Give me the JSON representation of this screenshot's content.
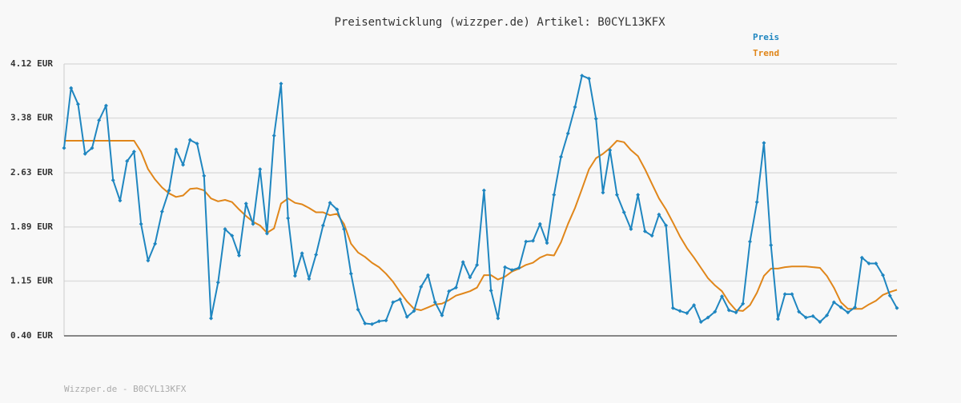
{
  "chart_data": {
    "type": "line",
    "title": "Preisentwicklung (wizzper.de) Artikel: B0CYL13KFX",
    "footer": "Wizzper.de - B0CYL13KFX",
    "ylim": [
      0.4,
      4.12
    ],
    "yticks": [
      {
        "value": 0.4,
        "label": "0.40 EUR"
      },
      {
        "value": 1.15,
        "label": "1.15 EUR"
      },
      {
        "value": 1.89,
        "label": "1.89 EUR"
      },
      {
        "value": 2.63,
        "label": "2.63 EUR"
      },
      {
        "value": 3.38,
        "label": "3.38 EUR"
      },
      {
        "value": 4.12,
        "label": "4.12 EUR"
      }
    ],
    "grid": true,
    "series": [
      {
        "name": "Preis",
        "color": "#1f86c0",
        "markers": true,
        "values": [
          2.97,
          3.79,
          3.57,
          2.89,
          2.97,
          3.35,
          3.55,
          2.53,
          2.25,
          2.79,
          2.92,
          1.93,
          1.43,
          1.66,
          2.1,
          2.39,
          2.95,
          2.74,
          3.08,
          3.03,
          2.59,
          0.64,
          1.13,
          1.86,
          1.77,
          1.5,
          2.21,
          1.93,
          2.68,
          1.8,
          3.14,
          3.85,
          2.01,
          1.22,
          1.53,
          1.18,
          1.51,
          1.91,
          2.22,
          2.13,
          1.86,
          1.25,
          0.76,
          0.57,
          0.56,
          0.6,
          0.61,
          0.86,
          0.9,
          0.66,
          0.74,
          1.07,
          1.23,
          0.86,
          0.68,
          1.01,
          1.06,
          1.41,
          1.2,
          1.37,
          2.39,
          1.02,
          0.64,
          1.34,
          1.3,
          1.33,
          1.69,
          1.7,
          1.93,
          1.67,
          2.33,
          2.85,
          3.17,
          3.53,
          3.96,
          3.92,
          3.37,
          2.36,
          2.94,
          2.33,
          2.09,
          1.86,
          2.33,
          1.83,
          1.77,
          2.06,
          1.91,
          0.78,
          0.74,
          0.71,
          0.82,
          0.59,
          0.65,
          0.73,
          0.94,
          0.75,
          0.72,
          0.84,
          1.69,
          2.23,
          3.04,
          1.64,
          0.63,
          0.97,
          0.97,
          0.73,
          0.65,
          0.67,
          0.59,
          0.68,
          0.86,
          0.79,
          0.72,
          0.79,
          1.47,
          1.39,
          1.39,
          1.23,
          0.95,
          0.78
        ]
      },
      {
        "name": "Trend",
        "color": "#e0861a",
        "markers": false,
        "values": [
          3.07,
          3.07,
          3.07,
          3.07,
          3.07,
          3.07,
          3.07,
          3.07,
          3.07,
          3.07,
          3.07,
          2.92,
          2.68,
          2.54,
          2.43,
          2.35,
          2.3,
          2.32,
          2.41,
          2.42,
          2.39,
          2.28,
          2.24,
          2.26,
          2.23,
          2.13,
          2.04,
          1.96,
          1.91,
          1.81,
          1.87,
          2.21,
          2.28,
          2.22,
          2.2,
          2.15,
          2.09,
          2.09,
          2.05,
          2.07,
          1.93,
          1.66,
          1.54,
          1.48,
          1.4,
          1.34,
          1.25,
          1.14,
          1.0,
          0.87,
          0.77,
          0.75,
          0.79,
          0.83,
          0.84,
          0.89,
          0.95,
          0.98,
          1.01,
          1.06,
          1.23,
          1.23,
          1.17,
          1.21,
          1.28,
          1.32,
          1.37,
          1.4,
          1.47,
          1.51,
          1.5,
          1.68,
          1.93,
          2.15,
          2.41,
          2.68,
          2.83,
          2.89,
          2.97,
          3.07,
          3.05,
          2.94,
          2.86,
          2.68,
          2.48,
          2.28,
          2.13,
          1.95,
          1.76,
          1.6,
          1.47,
          1.33,
          1.19,
          1.09,
          1.01,
          0.86,
          0.75,
          0.74,
          0.82,
          0.99,
          1.22,
          1.32,
          1.32,
          1.34,
          1.35,
          1.35,
          1.35,
          1.34,
          1.33,
          1.22,
          1.06,
          0.86,
          0.77,
          0.77,
          0.77,
          0.83,
          0.88,
          0.96,
          1.0,
          1.03
        ]
      }
    ]
  }
}
